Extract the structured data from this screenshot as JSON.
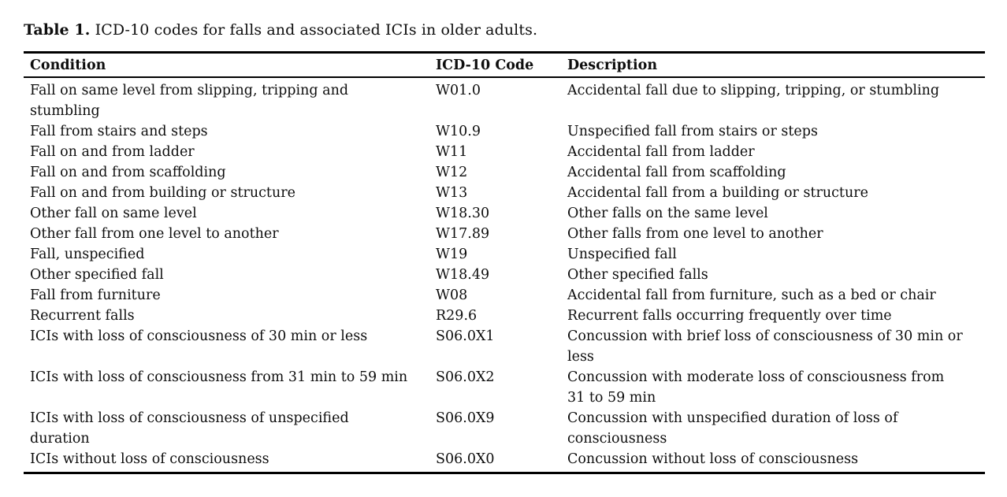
{
  "caption": {
    "label": "Table 1.",
    "text": " ICD-10 codes for falls and associated ICIs in older adults."
  },
  "table": {
    "headers": {
      "condition": "Condition",
      "code": "ICD-10 Code",
      "description": "Description"
    },
    "rows": [
      {
        "condition": "Fall on same level from slipping, tripping and\nstumbling",
        "code": "W01.0",
        "description": "Accidental fall due to slipping, tripping, or stumbling"
      },
      {
        "condition": "Fall from stairs and steps",
        "code": "W10.9",
        "description": "Unspecified fall from stairs or steps"
      },
      {
        "condition": "Fall on and from ladder",
        "code": "W11",
        "description": "Accidental fall from ladder"
      },
      {
        "condition": "Fall on and from scaffolding",
        "code": "W12",
        "description": "Accidental fall from scaffolding"
      },
      {
        "condition": "Fall on and from building or structure",
        "code": "W13",
        "description": "Accidental fall from a building or structure"
      },
      {
        "condition": "Other fall on same level",
        "code": "W18.30",
        "description": "Other falls on the same level"
      },
      {
        "condition": "Other fall from one level to another",
        "code": "W17.89",
        "description": "Other falls from one level to another"
      },
      {
        "condition": "Fall, unspecified",
        "code": "W19",
        "description": "Unspecified fall"
      },
      {
        "condition": "Other specified fall",
        "code": "W18.49",
        "description": "Other specified falls"
      },
      {
        "condition": "Fall from furniture",
        "code": "W08",
        "description": "Accidental fall from furniture, such as a bed or chair"
      },
      {
        "condition": "Recurrent falls",
        "code": "R29.6",
        "description": "Recurrent falls occurring frequently over time"
      },
      {
        "condition": "ICIs with loss of consciousness of 30 min or less",
        "code": "S06.0X1",
        "description": "Concussion with brief loss of consciousness of 30 min or\nless"
      },
      {
        "condition": "ICIs with loss of consciousness from 31 min to 59 min",
        "code": "S06.0X2",
        "description": "Concussion with moderate loss of consciousness from\n31 to 59 min"
      },
      {
        "condition": "ICIs with loss of consciousness of unspecified\nduration",
        "code": "S06.0X9",
        "description": "Concussion with unspecified duration of loss of\nconsciousness"
      },
      {
        "condition": "ICIs without loss of consciousness",
        "code": "S06.0X0",
        "description": "Concussion without loss of consciousness"
      }
    ]
  }
}
